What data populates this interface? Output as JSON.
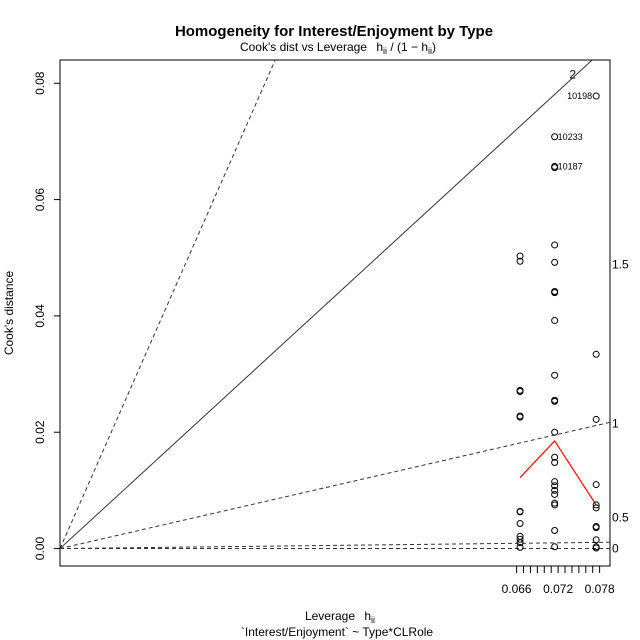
{
  "chart_data": {
    "type": "scatter",
    "title": "Homogeneity for Interest/Enjoyment by Type",
    "subtitle_prefix": "Cook's dist vs Leverage",
    "subtitle_formula": "h",
    "subtitle_sub": "ii",
    "subtitle_rest": " / (1 − h",
    "subtitle_end": ")",
    "xlabel": "Leverage",
    "xlabel_h": "h",
    "xlabel_sub": "ii",
    "ylabel": "Cook's distance",
    "caption": "`Interest/Enjoyment` ~ Type*CLRole",
    "xlim": [
      0.0,
      0.0795
    ],
    "ylim": [
      -0.003,
      0.084
    ],
    "x_ticks": [
      0.066,
      0.067,
      0.068,
      0.069,
      0.07,
      0.071,
      0.072,
      0.073,
      0.074,
      0.075,
      0.076,
      0.077,
      0.078
    ],
    "x_tick_labels": [
      "0.066",
      "",
      "",
      "",
      "",
      "",
      "0.072",
      "",
      "",
      "",
      "",
      "",
      "0.078"
    ],
    "y_ticks": [
      0.0,
      0.02,
      0.04,
      0.06,
      0.08
    ],
    "y_tick_labels": [
      "0.00",
      "0.02",
      "0.04",
      "0.06",
      "0.08"
    ],
    "contour_levels": [
      {
        "label": "0",
        "slope": 0.0,
        "style": "dashed"
      },
      {
        "label": "0.5",
        "slope": 0.01365,
        "style": "dashed"
      },
      {
        "label": "1",
        "slope": 0.273,
        "style": "dashed"
      },
      {
        "label": "1.5",
        "slope": 0.0,
        "style": "none"
      },
      {
        "label": "2",
        "slope": 1.092,
        "style": "solid"
      },
      {
        "label": "",
        "slope": 2.7,
        "style": "dashed"
      }
    ],
    "contour_labels": [
      {
        "label": "0",
        "value": 0.0
      },
      {
        "label": "0.5",
        "value": 0.0053
      },
      {
        "label": "1",
        "value": 0.0215
      },
      {
        "label": "1.5",
        "value": 0.0488
      },
      {
        "label": "2",
        "value": 0.0815
      }
    ],
    "points": [
      {
        "x": 0.0665,
        "y": 0.0503
      },
      {
        "x": 0.0665,
        "y": 0.0494
      },
      {
        "x": 0.0665,
        "y": 0.0272
      },
      {
        "x": 0.0665,
        "y": 0.027
      },
      {
        "x": 0.0665,
        "y": 0.0228
      },
      {
        "x": 0.0665,
        "y": 0.0226
      },
      {
        "x": 0.0665,
        "y": 0.0064
      },
      {
        "x": 0.0665,
        "y": 0.0063
      },
      {
        "x": 0.0665,
        "y": 0.0043
      },
      {
        "x": 0.0665,
        "y": 0.0021
      },
      {
        "x": 0.0665,
        "y": 0.0016
      },
      {
        "x": 0.0665,
        "y": 0.001
      },
      {
        "x": 0.0665,
        "y": 0.0002
      },
      {
        "x": 0.0715,
        "y": 0.0708,
        "label": "10233"
      },
      {
        "x": 0.0715,
        "y": 0.0657,
        "label": "10187"
      },
      {
        "x": 0.0715,
        "y": 0.0655
      },
      {
        "x": 0.0715,
        "y": 0.0522
      },
      {
        "x": 0.0715,
        "y": 0.0492
      },
      {
        "x": 0.0715,
        "y": 0.0442
      },
      {
        "x": 0.0715,
        "y": 0.044
      },
      {
        "x": 0.0715,
        "y": 0.0392
      },
      {
        "x": 0.0715,
        "y": 0.0298
      },
      {
        "x": 0.0715,
        "y": 0.0255
      },
      {
        "x": 0.0715,
        "y": 0.0253
      },
      {
        "x": 0.0715,
        "y": 0.02
      },
      {
        "x": 0.0715,
        "y": 0.0157
      },
      {
        "x": 0.0715,
        "y": 0.0148
      },
      {
        "x": 0.0715,
        "y": 0.0115
      },
      {
        "x": 0.0715,
        "y": 0.0108
      },
      {
        "x": 0.0715,
        "y": 0.01
      },
      {
        "x": 0.0715,
        "y": 0.0093
      },
      {
        "x": 0.0715,
        "y": 0.0078
      },
      {
        "x": 0.0715,
        "y": 0.0075
      },
      {
        "x": 0.0715,
        "y": 0.0031
      },
      {
        "x": 0.0715,
        "y": 0.0003
      },
      {
        "x": 0.0775,
        "y": 0.0778,
        "label": "10198"
      },
      {
        "x": 0.0775,
        "y": 0.0334
      },
      {
        "x": 0.0775,
        "y": 0.0222
      },
      {
        "x": 0.0775,
        "y": 0.011
      },
      {
        "x": 0.0775,
        "y": 0.0075
      },
      {
        "x": 0.0775,
        "y": 0.007
      },
      {
        "x": 0.0775,
        "y": 0.0038
      },
      {
        "x": 0.0775,
        "y": 0.0036
      },
      {
        "x": 0.0775,
        "y": 0.0015
      },
      {
        "x": 0.0775,
        "y": 0.0003
      },
      {
        "x": 0.0775,
        "y": 0.0001
      }
    ],
    "smooth_line": {
      "color": "#ff0000",
      "points": [
        {
          "x": 0.0665,
          "y": 0.0122
        },
        {
          "x": 0.0715,
          "y": 0.0185
        },
        {
          "x": 0.0775,
          "y": 0.0075
        }
      ]
    }
  }
}
